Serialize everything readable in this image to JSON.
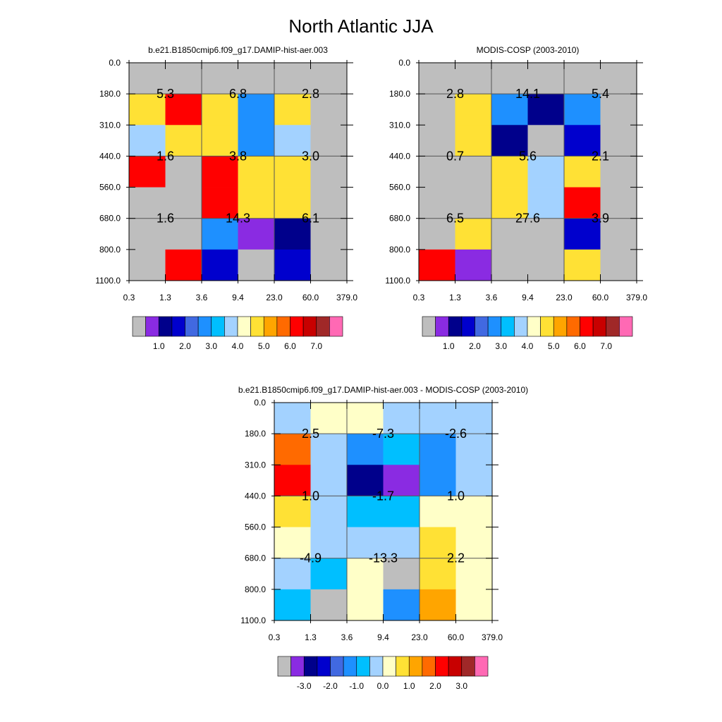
{
  "figure": {
    "title": "North Atlantic JJA"
  },
  "chart_data": [
    {
      "type": "heatmap",
      "title": "b.e21.B1850cmip6.f09_g17.DAMIP-hist-aer.003",
      "x_ticks": [
        "0.3",
        "1.3",
        "3.6",
        "9.4",
        "23.0",
        "60.0",
        "379.0"
      ],
      "y_ticks": [
        "0.0",
        "180.0",
        "310.0",
        "440.0",
        "560.0",
        "680.0",
        "800.0",
        "1100.0"
      ],
      "colorbar": "abs",
      "cells": [
        [
          0,
          0,
          0,
          0,
          0,
          0
        ],
        [
          4.6,
          6.2,
          4.6,
          2.6,
          4.6,
          0
        ],
        [
          3.7,
          4.6,
          4.6,
          2.6,
          3.7,
          0
        ],
        [
          6.2,
          0,
          6.2,
          4.6,
          4.6,
          0
        ],
        [
          0,
          0,
          6.2,
          4.6,
          4.6,
          0
        ],
        [
          0,
          0,
          2.6,
          0.9,
          1.4,
          0
        ],
        [
          0,
          6.2,
          1.8,
          0.4,
          1.8,
          0
        ]
      ],
      "block_labels": [
        [
          "5.3",
          "6.8",
          "2.8"
        ],
        [
          "1.6",
          "3.8",
          "3.0"
        ],
        [
          "1.6",
          "14.3",
          "6.1"
        ]
      ]
    },
    {
      "type": "heatmap",
      "title": "MODIS-COSP (2003-2010)",
      "x_ticks": [
        "0.3",
        "1.3",
        "3.6",
        "9.4",
        "23.0",
        "60.0",
        "379.0"
      ],
      "y_ticks": [
        "0.0",
        "180.0",
        "310.0",
        "440.0",
        "560.0",
        "680.0",
        "800.0",
        "1100.0"
      ],
      "colorbar": "abs",
      "cells": [
        [
          0,
          0,
          0,
          0,
          0,
          0
        ],
        [
          0,
          4.6,
          2.6,
          1.4,
          2.6,
          0
        ],
        [
          0,
          4.6,
          1.1,
          0.4,
          1.8,
          0
        ],
        [
          0,
          0,
          4.6,
          3.7,
          4.6,
          0
        ],
        [
          0,
          0,
          4.6,
          3.7,
          6.2,
          0
        ],
        [
          0,
          4.6,
          -0.4,
          -1.6,
          1.8,
          0
        ],
        [
          6.2,
          0.9,
          -2.0,
          -0.4,
          4.6,
          0
        ]
      ],
      "block_labels": [
        [
          "2.8",
          "14.1",
          "5.4"
        ],
        [
          "0.7",
          "5.6",
          "2.1"
        ],
        [
          "6.5",
          "27.6",
          "3.9"
        ]
      ]
    },
    {
      "type": "heatmap",
      "title": "b.e21.B1850cmip6.f09_g17.DAMIP-hist-aer.003 - MODIS-COSP (2003-2010)",
      "x_ticks": [
        "0.3",
        "1.3",
        "3.6",
        "9.4",
        "23.0",
        "60.0",
        "379.0"
      ],
      "y_ticks": [
        "0.0",
        "180.0",
        "310.0",
        "440.0",
        "560.0",
        "680.0",
        "800.0",
        "1100.0"
      ],
      "colorbar": "diff",
      "cells": [
        [
          -0.2,
          0.2,
          0.2,
          -0.2,
          -0.2,
          -0.2
        ],
        [
          1.9,
          -0.2,
          -1.2,
          -0.7,
          -1.2,
          -0.2
        ],
        [
          2.4,
          -0.2,
          -2.7,
          -3.1,
          -1.2,
          -0.2
        ],
        [
          0.9,
          -0.2,
          -0.7,
          -0.7,
          0.2,
          0.2
        ],
        [
          0.2,
          -0.2,
          -0.2,
          -0.2,
          0.9,
          0.2
        ],
        [
          -0.2,
          -0.7,
          0,
          -3.6,
          0.9,
          0.2
        ],
        [
          -0.7,
          -3.6,
          0,
          -1.2,
          1.4,
          0.2
        ]
      ],
      "block_labels": [
        [
          "2.5",
          "-7.3",
          "-2.6"
        ],
        [
          "1.0",
          "-1.7",
          "1.0"
        ],
        [
          "-4.9",
          "-13.3",
          "2.2"
        ]
      ]
    }
  ],
  "colorbars": {
    "abs": {
      "colors": [
        "#bebebe",
        "#8a2be2",
        "#00008b",
        "#0000cd",
        "#4169e1",
        "#1e90ff",
        "#00bfff",
        "#a3d2ff",
        "#ffffc8",
        "#ffe135",
        "#ffa500",
        "#ff6a00",
        "#ff0000",
        "#c80000",
        "#a02828",
        "#ff69b4"
      ],
      "edges": [
        0.5,
        1.0,
        1.5,
        2.0,
        2.5,
        3.0,
        3.5,
        4.0,
        4.5,
        5.0,
        5.5,
        6.0,
        6.5,
        7.0
      ],
      "labels": [
        "1.0",
        "2.0",
        "3.0",
        "4.0",
        "5.0",
        "6.0",
        "7.0"
      ]
    },
    "diff": {
      "colors": [
        "#bebebe",
        "#8a2be2",
        "#00008b",
        "#0000cd",
        "#4169e1",
        "#1e90ff",
        "#00bfff",
        "#a3d2ff",
        "#ffffc8",
        "#ffe135",
        "#ffa500",
        "#ff6a00",
        "#ff0000",
        "#c80000",
        "#a02828",
        "#ff69b4"
      ],
      "edges": [
        -3.5,
        -3.0,
        -2.5,
        -2.0,
        -1.5,
        -1.0,
        -0.5,
        0.0,
        0.5,
        1.0,
        1.5,
        2.0,
        2.5,
        3.0
      ],
      "labels": [
        "-3.0",
        "-2.0",
        "-1.0",
        "0.0",
        "1.0",
        "2.0",
        "3.0"
      ]
    }
  }
}
